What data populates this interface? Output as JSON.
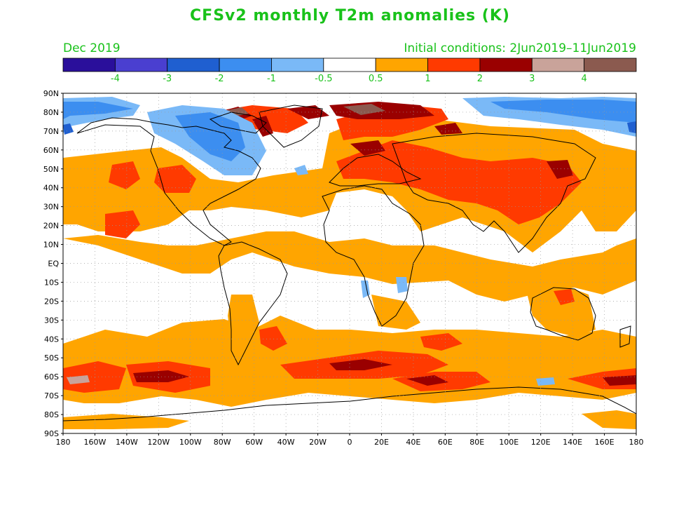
{
  "title": "CFSv2 monthly T2m anomalies (K)",
  "valid_month": "Dec 2019",
  "initial_conditions": "Initial conditions: 2Jun2019–11Jun2019",
  "colorbar": {
    "colors": [
      "#2a0f9b",
      "#4a3fd0",
      "#1f5fd0",
      "#3c8ef0",
      "#7ab9f7",
      "#ffffff",
      "#ffa500",
      "#ff3a00",
      "#9a0000",
      "#c9a39a",
      "#8b5a4f"
    ],
    "labels": [
      "-4",
      "-3",
      "-2",
      "-1",
      "-0.5",
      "0.5",
      "1",
      "2",
      "3",
      "4"
    ]
  },
  "axes": {
    "lat_labels": [
      "90N",
      "80N",
      "70N",
      "60N",
      "50N",
      "40N",
      "30N",
      "20N",
      "10N",
      "EQ",
      "10S",
      "20S",
      "30S",
      "40S",
      "50S",
      "60S",
      "70S",
      "80S",
      "90S"
    ],
    "lon_labels": [
      "180",
      "160W",
      "140W",
      "120W",
      "100W",
      "80W",
      "60W",
      "40W",
      "20W",
      "0",
      "20E",
      "40E",
      "60E",
      "80E",
      "100E",
      "120E",
      "140E",
      "160E",
      "180"
    ]
  },
  "anomaly_regions": [
    {
      "name": "arctic-pacific-cold",
      "level": "cold-1"
    },
    {
      "name": "hudson-bay-cold",
      "level": "cold-1"
    },
    {
      "name": "greenland-sea-warm",
      "level": "warm-3"
    },
    {
      "name": "barents-warm",
      "level": "warm-3"
    },
    {
      "name": "eurasia-warm",
      "level": "warm-2"
    },
    {
      "name": "southern-ocean-warm",
      "level": "warm-3"
    }
  ]
}
